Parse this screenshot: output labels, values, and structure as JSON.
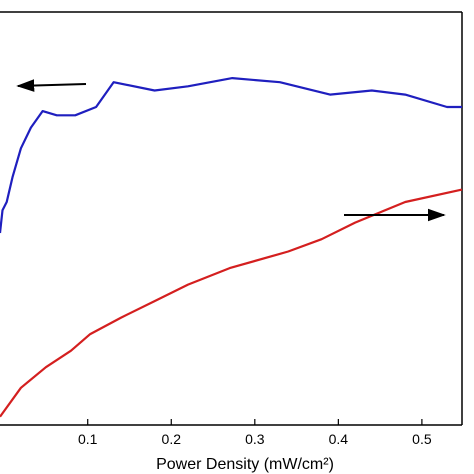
{
  "chart_data": {
    "type": "line",
    "xlabel": "Power Density (mW/cm²)",
    "ylabel": "",
    "xlim": [
      -0.005,
      0.548
    ],
    "ylim": [
      0,
      1
    ],
    "x_ticks": [
      {
        "value": 0.1,
        "label": "0.1"
      },
      {
        "value": 0.2,
        "label": "0.2"
      },
      {
        "value": 0.3,
        "label": "0.3"
      },
      {
        "value": 0.4,
        "label": "0.4"
      },
      {
        "value": 0.5,
        "label": "0.5"
      }
    ],
    "grid": false,
    "series": [
      {
        "color": "#1f1fbf",
        "axis": "left",
        "points": [
          [
            -0.005,
            0.465
          ],
          [
            -0.002,
            0.52
          ],
          [
            0.003,
            0.54
          ],
          [
            0.01,
            0.6
          ],
          [
            0.02,
            0.67
          ],
          [
            0.032,
            0.72
          ],
          [
            0.046,
            0.76
          ],
          [
            0.063,
            0.75
          ],
          [
            0.085,
            0.75
          ],
          [
            0.11,
            0.77
          ],
          [
            0.131,
            0.83
          ],
          [
            0.18,
            0.81
          ],
          [
            0.22,
            0.82
          ],
          [
            0.273,
            0.84
          ],
          [
            0.33,
            0.83
          ],
          [
            0.39,
            0.8
          ],
          [
            0.44,
            0.81
          ],
          [
            0.48,
            0.8
          ],
          [
            0.53,
            0.77
          ],
          [
            0.548,
            0.77
          ]
        ]
      },
      {
        "color": "#d41f1f",
        "axis": "right",
        "points": [
          [
            -0.005,
            0.02
          ],
          [
            0.02,
            0.09
          ],
          [
            0.05,
            0.14
          ],
          [
            0.08,
            0.18
          ],
          [
            0.103,
            0.22
          ],
          [
            0.14,
            0.26
          ],
          [
            0.18,
            0.3
          ],
          [
            0.22,
            0.34
          ],
          [
            0.27,
            0.38
          ],
          [
            0.34,
            0.42
          ],
          [
            0.38,
            0.45
          ],
          [
            0.42,
            0.49
          ],
          [
            0.48,
            0.54
          ],
          [
            0.548,
            0.57
          ]
        ]
      }
    ],
    "annotations": [
      {
        "type": "arrow",
        "direction": "left",
        "points_to": "left-axis"
      },
      {
        "type": "arrow",
        "direction": "right",
        "points_to": "right-axis"
      }
    ]
  }
}
